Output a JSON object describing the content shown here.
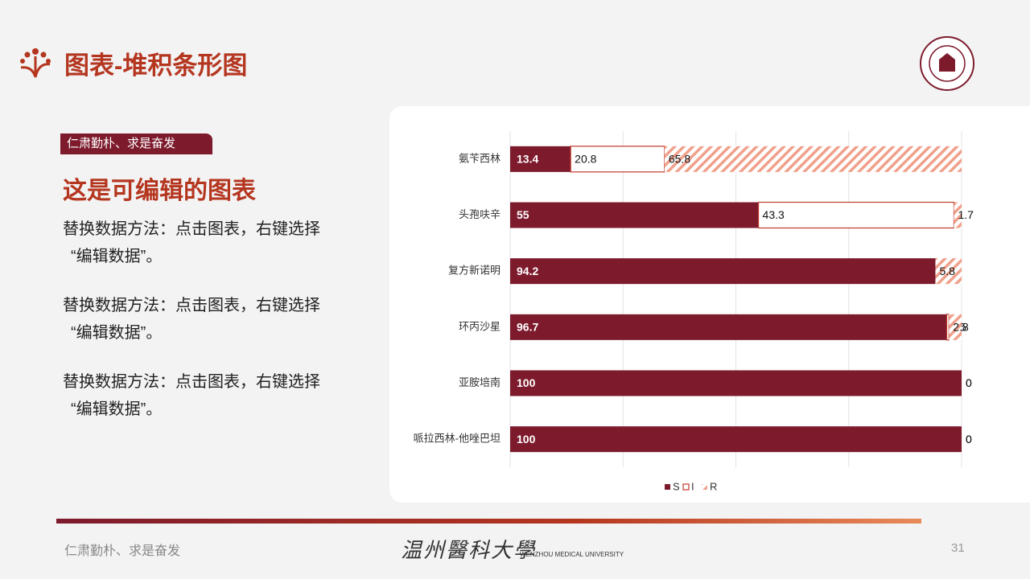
{
  "header": {
    "title": "图表-堆积条形图"
  },
  "sidebar": {
    "tag": "仁肃勤朴、求是奋发",
    "heading": "这是可编辑的图表",
    "paragraphs": [
      [
        "替换数据方法：点击图表，右键选择",
        "“编辑数据”。"
      ],
      [
        "替换数据方法：点击图表，右键选择",
        "“编辑数据”。"
      ],
      [
        "替换数据方法：点击图表，右键选择",
        "“编辑数据”。"
      ]
    ]
  },
  "footer": {
    "motto": "仁肃勤朴、求是奋发",
    "university": "温州醫科大學",
    "university_en": "WENZHOU MEDICAL UNIVERSITY",
    "page": "31"
  },
  "chart_data": {
    "type": "stacked_barh",
    "categories": [
      "氨苄西林",
      "头孢呋辛",
      "复方新诺明",
      "环丙沙星",
      "亚胺培南",
      "哌拉西林-他唑巴坦"
    ],
    "series": [
      {
        "name": "S",
        "color": "#7d1b2d",
        "values": [
          13.4,
          55,
          94.2,
          96.7,
          100,
          100
        ]
      },
      {
        "name": "I",
        "color": "#c0392b",
        "values": [
          20.8,
          43.3,
          0,
          0.5,
          0,
          0
        ]
      },
      {
        "name": "R",
        "color": "#f0a08a",
        "values": [
          65.8,
          1.7,
          5.8,
          2.8,
          0,
          0
        ]
      }
    ],
    "xlim": [
      0,
      100
    ],
    "grid": true,
    "legend": "bottom"
  }
}
